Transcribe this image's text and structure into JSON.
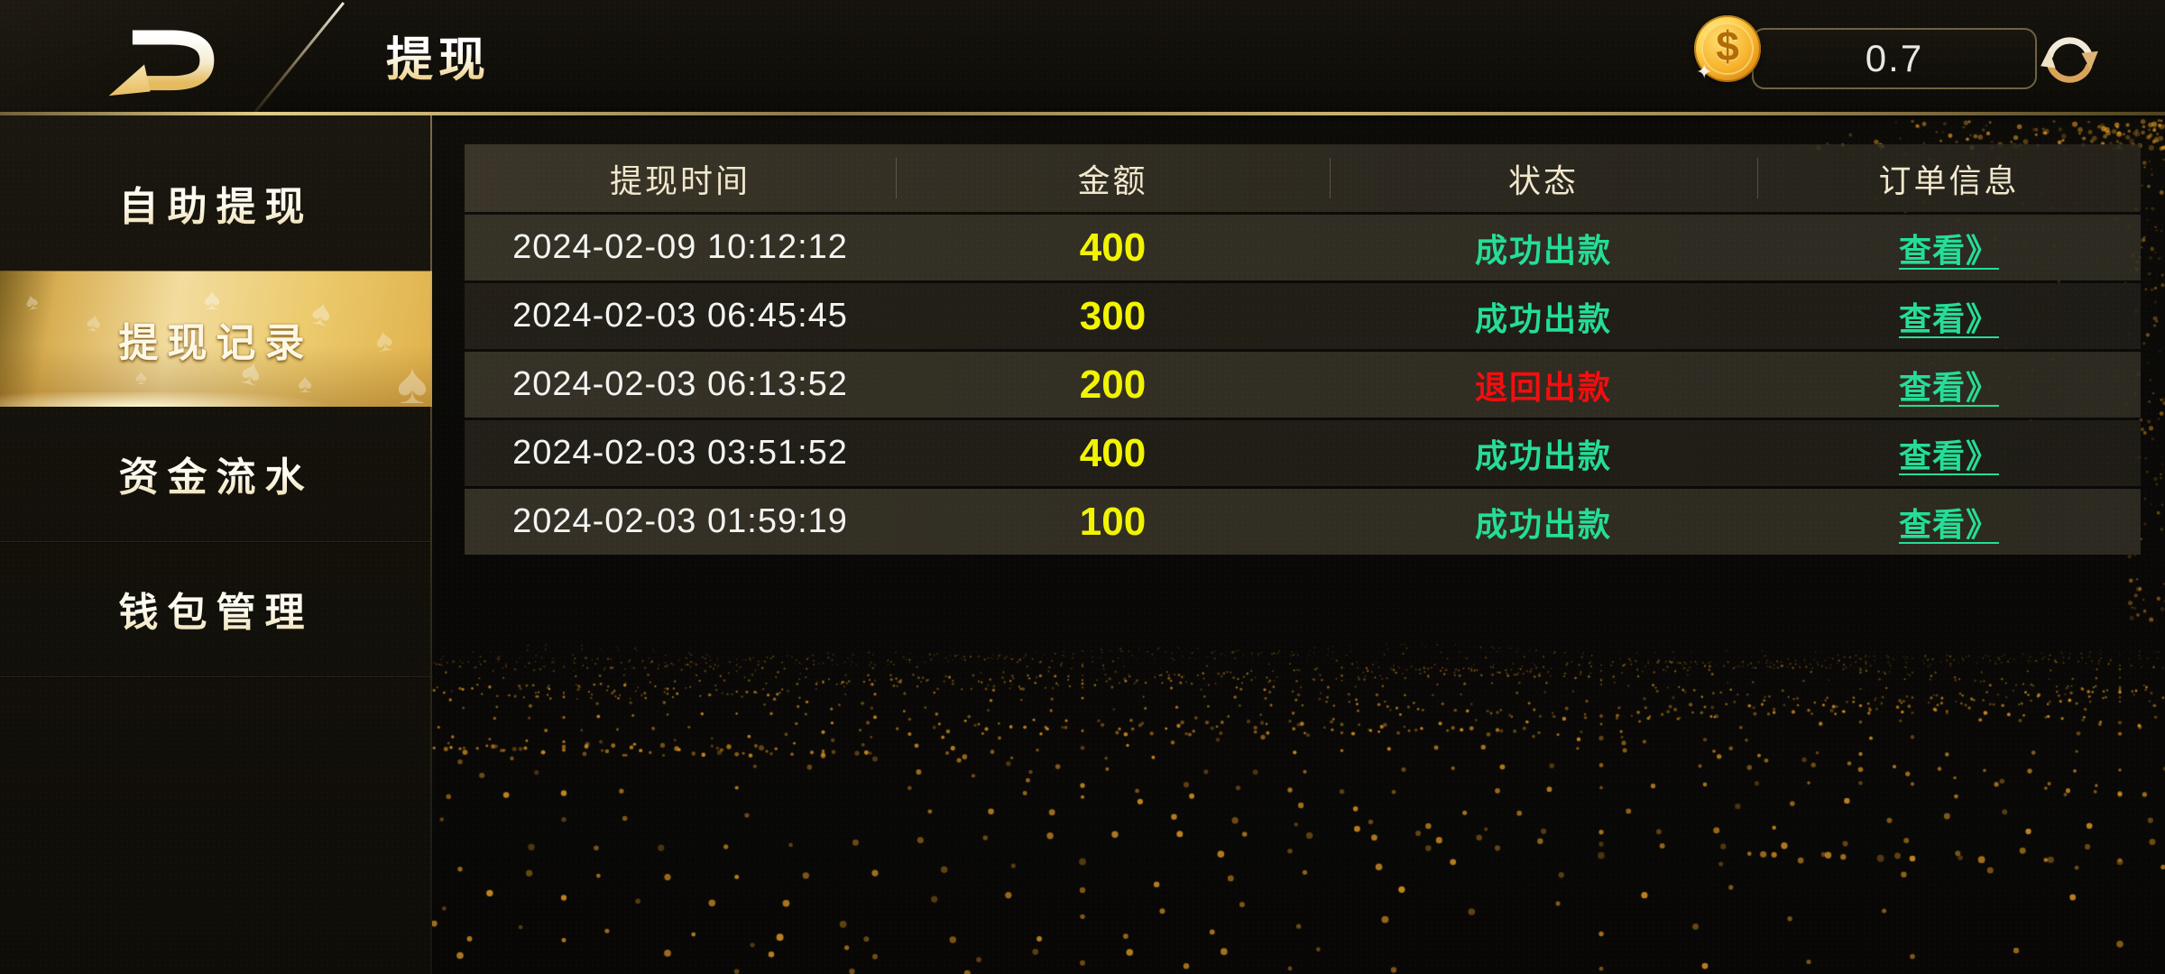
{
  "header": {
    "title": "提现",
    "balance": {
      "value": "0.7",
      "coin_symbol": "$"
    }
  },
  "sidebar": {
    "items": [
      {
        "label": "自助提现",
        "active": false
      },
      {
        "label": "提现记录",
        "active": true
      },
      {
        "label": "资金流水",
        "active": false
      },
      {
        "label": "钱包管理",
        "active": false
      }
    ]
  },
  "table": {
    "columns": [
      "提现时间",
      "金额",
      "状态",
      "订单信息"
    ],
    "rows": [
      {
        "time": "2024-02-09 10:12:12",
        "amount": "400",
        "status": "成功出款",
        "status_type": "success",
        "action": "查看》"
      },
      {
        "time": "2024-02-03 06:45:45",
        "amount": "300",
        "status": "成功出款",
        "status_type": "success",
        "action": "查看》"
      },
      {
        "time": "2024-02-03 06:13:52",
        "amount": "200",
        "status": "退回出款",
        "status_type": "refund",
        "action": "查看》"
      },
      {
        "time": "2024-02-03 03:51:52",
        "amount": "400",
        "status": "成功出款",
        "status_type": "success",
        "action": "查看》"
      },
      {
        "time": "2024-02-03 01:59:19",
        "amount": "100",
        "status": "成功出款",
        "status_type": "success",
        "action": "查看》"
      }
    ]
  },
  "icons": {
    "spade": "♠",
    "sparkle": "✦",
    "coin": "coin-icon",
    "refresh": "refresh-icon",
    "logo": "brand-logo"
  },
  "colors": {
    "amount": "#F2F400",
    "success": "#25DD96",
    "refund": "#F50D0D",
    "accent_gold": "#E7BE5E"
  }
}
